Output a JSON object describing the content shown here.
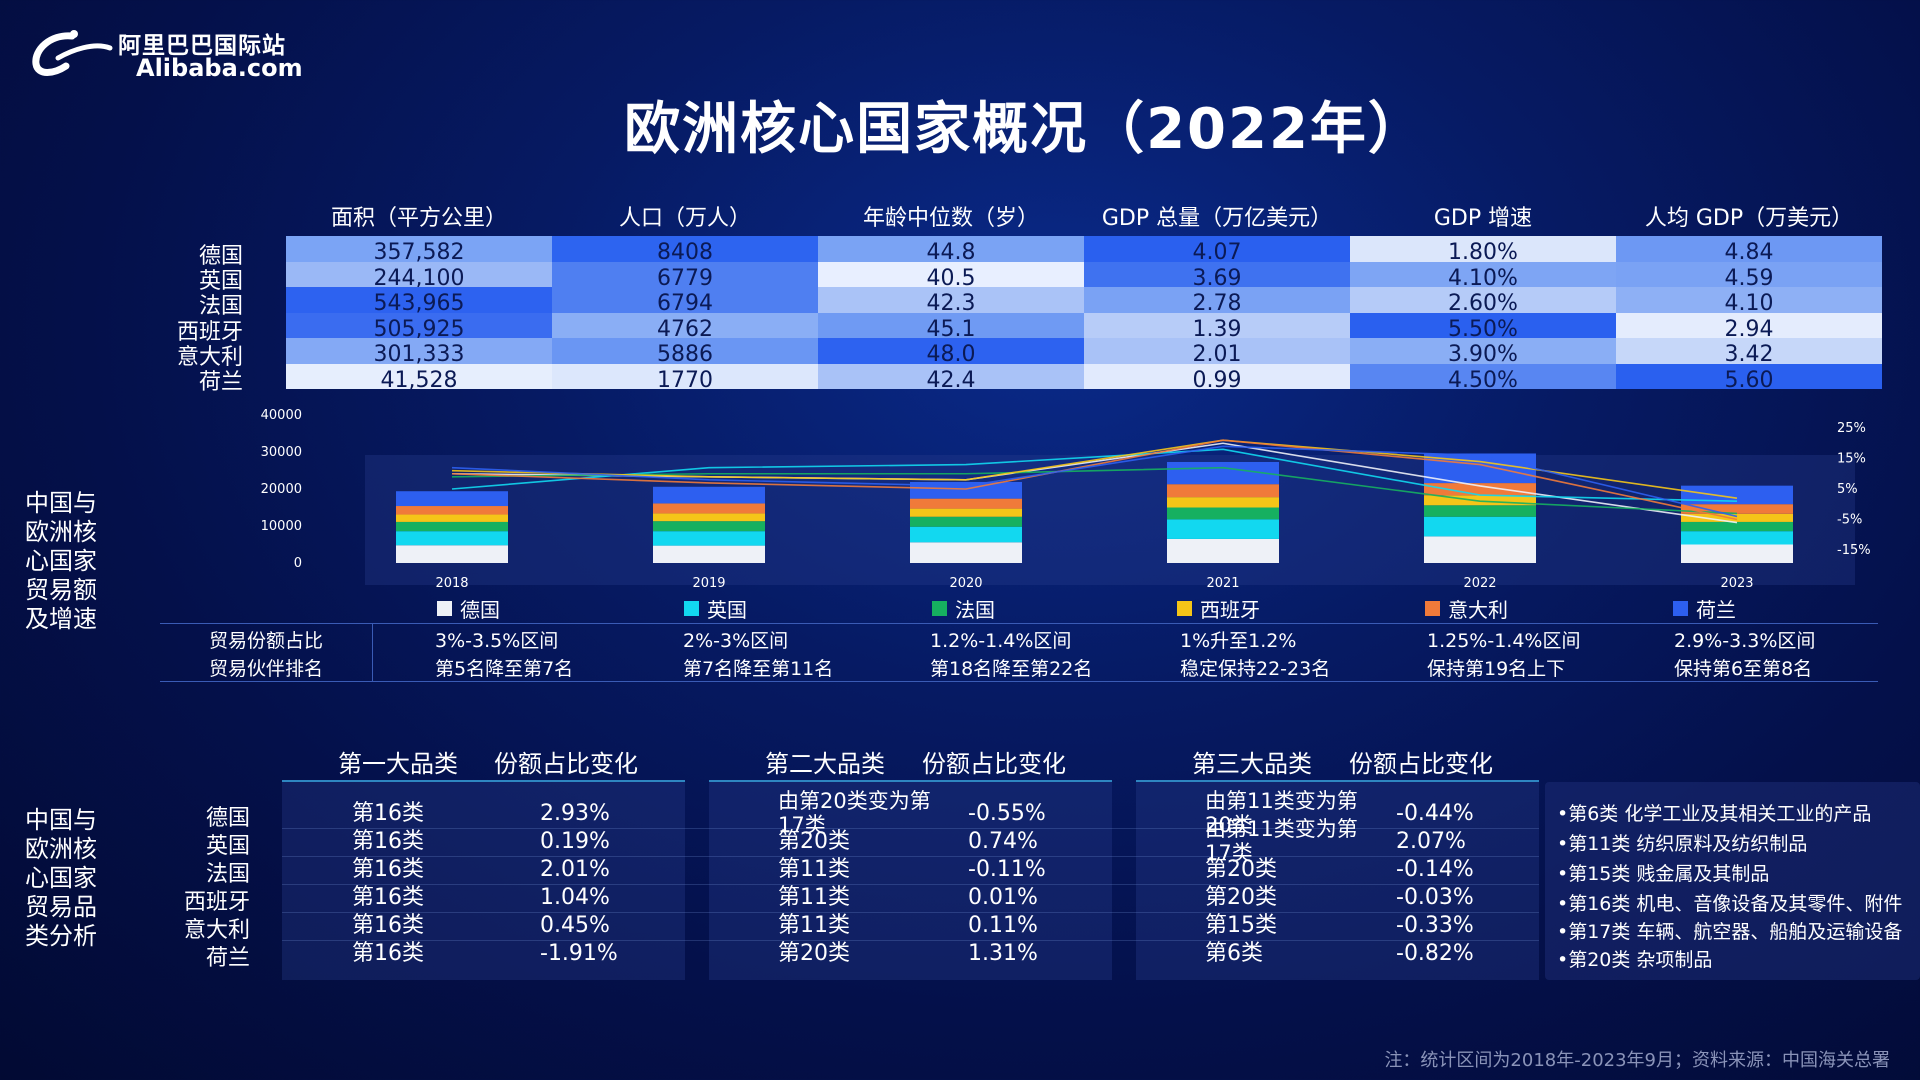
{
  "logo": {
    "cn": "阿里巴巴国际站",
    "en": "Alibaba.com"
  },
  "title": "欧洲核心国家概况（2022年）",
  "colors": {
    "德国": "#eef1f7",
    "英国": "#12d8f0",
    "法国": "#16b060",
    "西班牙": "#f5c518",
    "意大利": "#f07a3a",
    "荷兰": "#2d5ff0"
  },
  "stats_table": {
    "headers": [
      "面积（平方公里）",
      "人口（万人）",
      "年龄中位数（岁）",
      "GDP 总量（万亿美元）",
      "GDP 增速",
      "人均 GDP（万美元）"
    ],
    "rows": [
      {
        "country": "德国",
        "values": [
          "357,582",
          "8408",
          "44.8",
          "4.07",
          "1.80%",
          "4.84"
        ]
      },
      {
        "country": "英国",
        "values": [
          "244,100",
          "6779",
          "40.5",
          "3.69",
          "4.10%",
          "4.59"
        ]
      },
      {
        "country": "法国",
        "values": [
          "543,965",
          "6794",
          "42.3",
          "2.78",
          "2.60%",
          "4.10"
        ]
      },
      {
        "country": "西班牙",
        "values": [
          "505,925",
          "4762",
          "45.1",
          "1.39",
          "5.50%",
          "2.94"
        ]
      },
      {
        "country": "意大利",
        "values": [
          "301,333",
          "5886",
          "48.0",
          "2.01",
          "3.90%",
          "3.42"
        ]
      },
      {
        "country": "荷兰",
        "values": [
          "41,528",
          "1770",
          "42.4",
          "0.99",
          "4.50%",
          "5.60"
        ]
      }
    ]
  },
  "trade_label": "中国与欧洲核心国家贸易额及增速",
  "chart_data": {
    "type": "bar",
    "stacked": true,
    "categories": [
      "2018",
      "2019",
      "2020",
      "2021",
      "2022",
      "2023"
    ],
    "y_ticks": [
      0,
      10000,
      20000,
      30000,
      40000
    ],
    "ylim": [
      0,
      40000
    ],
    "y2_ticks": [
      "25%",
      "15%",
      "5%",
      "-5%",
      "-15%"
    ],
    "y2lim": [
      -15,
      25
    ],
    "series": [
      {
        "name": "德国",
        "values": [
          4800,
          4700,
          5600,
          6500,
          7200,
          5000
        ]
      },
      {
        "name": "英国",
        "values": [
          3800,
          3900,
          4200,
          5300,
          5300,
          3600
        ]
      },
      {
        "name": "法国",
        "values": [
          2500,
          2700,
          2700,
          3200,
          3100,
          2500
        ]
      },
      {
        "name": "西班牙",
        "values": [
          2000,
          2100,
          2200,
          2800,
          2700,
          2200
        ]
      },
      {
        "name": "意大利",
        "values": [
          2300,
          2700,
          2700,
          3500,
          3300,
          2600
        ]
      },
      {
        "name": "荷兰",
        "values": [
          4000,
          4500,
          4500,
          6000,
          8000,
          5000
        ]
      }
    ],
    "growth_lines": [
      {
        "name": "德国",
        "values": [
          10,
          9,
          8,
          20,
          6,
          -6
        ]
      },
      {
        "name": "英国",
        "values": [
          5,
          12,
          13,
          18,
          3,
          1
        ]
      },
      {
        "name": "法国",
        "values": [
          9,
          10,
          10,
          12,
          1,
          -3
        ]
      },
      {
        "name": "西班牙",
        "values": [
          11,
          9,
          8,
          21,
          14,
          2
        ]
      },
      {
        "name": "意大利",
        "values": [
          10,
          7,
          5,
          21,
          13,
          -5
        ]
      },
      {
        "name": "荷兰",
        "values": [
          12,
          8,
          6,
          19,
          16,
          -4
        ]
      }
    ]
  },
  "share_table": {
    "labels": [
      "贸易份额占比",
      "贸易伙伴排名"
    ],
    "columns": [
      {
        "share": "3%-3.5%区间",
        "rank": "第5名降至第7名"
      },
      {
        "share": "2%-3%区间",
        "rank": "第7名降至第11名"
      },
      {
        "share": "1.2%-1.4%区间",
        "rank": "第18名降至第22名"
      },
      {
        "share": "1%升至1.2%",
        "rank": "稳定保持22-23名"
      },
      {
        "share": "1.25%-1.4%区间",
        "rank": "保持第19名上下"
      },
      {
        "share": "2.9%-3.3%区间",
        "rank": "保持第6至第8名"
      }
    ]
  },
  "category_label": "中国与欧洲核心国家贸易品类分析",
  "category_headers": [
    {
      "cat": "第一大品类",
      "change": "份额占比变化"
    },
    {
      "cat": "第二大品类",
      "change": "份额占比变化"
    },
    {
      "cat": "第三大品类",
      "change": "份额占比变化"
    }
  ],
  "category_rows": [
    {
      "country": "德国",
      "c1": "第16类",
      "v1": "2.93%",
      "c2": "由第20类变为第17类",
      "v2": "-0.55%",
      "c3": "由第11类变为第20类",
      "v3": "-0.44%"
    },
    {
      "country": "英国",
      "c1": "第16类",
      "v1": "0.19%",
      "c2": "第20类",
      "v2": "0.74%",
      "c3": "由第11类变为第17类",
      "v3": "2.07%"
    },
    {
      "country": "法国",
      "c1": "第16类",
      "v1": "2.01%",
      "c2": "第11类",
      "v2": "-0.11%",
      "c3": "第20类",
      "v3": "-0.14%"
    },
    {
      "country": "西班牙",
      "c1": "第16类",
      "v1": "1.04%",
      "c2": "第11类",
      "v2": "0.01%",
      "c3": "第20类",
      "v3": "-0.03%"
    },
    {
      "country": "意大利",
      "c1": "第16类",
      "v1": "0.45%",
      "c2": "第11类",
      "v2": "0.11%",
      "c3": "第15类",
      "v3": "-0.33%"
    },
    {
      "country": "荷兰",
      "c1": "第16类",
      "v1": "-1.91%",
      "c2": "第20类",
      "v2": "1.31%",
      "c3": "第6类",
      "v3": "-0.82%"
    }
  ],
  "category_notes": [
    "•第6类 化学工业及其相关工业的产品",
    "•第11类 纺织原料及纺织制品",
    "•第15类 贱金属及其制品",
    "•第16类 机电、音像设备及其零件、附件",
    "•第17类 车辆、航空器、船舶及运输设备",
    "•第20类 杂项制品"
  ],
  "footer": "注：统计区间为2018年-2023年9月；资料来源：中国海关总署"
}
